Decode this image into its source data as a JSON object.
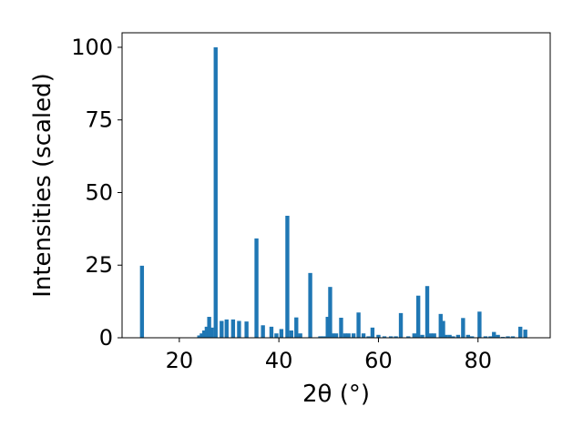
{
  "chart_data": {
    "type": "bar",
    "title": "",
    "xlabel": "2θ (°)",
    "ylabel": "Intensities (scaled)",
    "xlim": [
      8.5,
      94.5
    ],
    "ylim": [
      0,
      105
    ],
    "xticks": [
      20,
      40,
      60,
      80
    ],
    "yticks": [
      0,
      25,
      50,
      75,
      100
    ],
    "grid": false,
    "legend": "none",
    "bar_color": "#1f77b4",
    "bar_width": 0.8,
    "x": [
      12.5,
      24.0,
      24.5,
      25.0,
      25.5,
      26.0,
      26.5,
      27.3,
      28.5,
      29.5,
      30.8,
      32.0,
      33.5,
      35.5,
      36.8,
      38.5,
      39.5,
      40.5,
      41.7,
      42.5,
      43.5,
      44.3,
      46.3,
      48.3,
      49.0,
      49.8,
      50.3,
      50.8,
      51.5,
      52.5,
      53.3,
      54.0,
      55.0,
      56.0,
      57.0,
      58.0,
      58.8,
      60.0,
      61.2,
      62.5,
      63.5,
      64.5,
      66.0,
      67.2,
      68.0,
      68.8,
      69.8,
      70.5,
      71.2,
      72.5,
      73.0,
      73.5,
      74.3,
      75.0,
      76.0,
      77.0,
      78.0,
      78.8,
      80.3,
      81.5,
      82.5,
      83.2,
      84.0,
      85.0,
      86.0,
      87.0,
      88.5,
      89.5
    ],
    "values": [
      24.8,
      0.8,
      1.5,
      2.5,
      3.8,
      7.2,
      3.5,
      100.0,
      5.8,
      6.3,
      6.3,
      5.8,
      5.6,
      34.2,
      4.3,
      3.8,
      1.5,
      3.0,
      42.0,
      2.5,
      7.0,
      1.5,
      22.3,
      0.5,
      0.5,
      7.2,
      17.5,
      1.5,
      1.5,
      6.9,
      1.5,
      1.5,
      1.5,
      8.7,
      1.5,
      0.5,
      3.5,
      1.0,
      0.5,
      0.5,
      0.5,
      8.5,
      0.5,
      1.5,
      14.5,
      1.0,
      17.8,
      1.5,
      1.5,
      8.2,
      5.8,
      1.0,
      1.0,
      0.5,
      1.0,
      6.8,
      1.0,
      0.5,
      9.0,
      0.5,
      0.5,
      2.0,
      1.0,
      0.3,
      0.5,
      0.5,
      3.8,
      2.8
    ]
  }
}
